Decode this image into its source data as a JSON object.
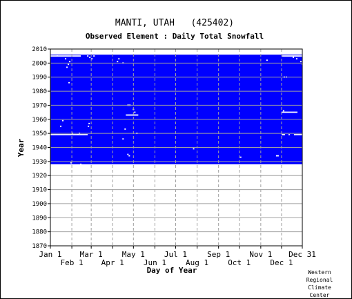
{
  "chart_data": {
    "type": "heatmap",
    "title": "MANTI, UTAH   (425402)",
    "subtitle": "Observed Element : Daily Total Snowfall",
    "xlabel": "Day of Year",
    "ylabel": "Year",
    "xlim": [
      1,
      365
    ],
    "ylim": [
      1870,
      2010
    ],
    "y_ticks": [
      1870,
      1880,
      1890,
      1900,
      1910,
      1920,
      1930,
      1940,
      1950,
      1960,
      1970,
      1980,
      1990,
      2000,
      2010
    ],
    "x_ticks_top_row": [
      {
        "label": "Jan 1",
        "day": 1
      },
      {
        "label": "Mar 1",
        "day": 60
      },
      {
        "label": "May 1",
        "day": 121
      },
      {
        "label": "Jul 1",
        "day": 182
      },
      {
        "label": "Sep 1",
        "day": 244
      },
      {
        "label": "Nov 1",
        "day": 305
      },
      {
        "label": "Dec 31",
        "day": 365
      }
    ],
    "x_ticks_bottom_row": [
      {
        "label": "Feb 1",
        "day": 32
      },
      {
        "label": "Apr 1",
        "day": 91
      },
      {
        "label": "Jun 1",
        "day": 152
      },
      {
        "label": "Aug 1",
        "day": 213
      },
      {
        "label": "Oct 1",
        "day": 274
      },
      {
        "label": "Dec 1",
        "day": 335
      }
    ],
    "grid": true,
    "colors": {
      "data_present": "#0000ff",
      "missing": "#ffffff",
      "grid": "#a0a0a0"
    },
    "data_present_years": [
      1928,
      2005
    ],
    "missing_segments": [
      {
        "year": 1949,
        "day_start": 1,
        "day_end": 55
      },
      {
        "year": 1963,
        "day_start": 110,
        "day_end": 128
      },
      {
        "year": 1965,
        "day_start": 335,
        "day_end": 358
      },
      {
        "year": 1949,
        "day_start": 335,
        "day_end": 340
      },
      {
        "year": 1949,
        "day_start": 353,
        "day_end": 365
      },
      {
        "year": 2005,
        "day_start": 1,
        "day_end": 45
      },
      {
        "year": 2005,
        "day_start": 336,
        "day_end": 365
      },
      {
        "year": 1970,
        "day_start": 112,
        "day_end": 117
      }
    ],
    "missing_points": [
      [
        10,
        2005
      ],
      [
        22,
        2003
      ],
      [
        28,
        2001
      ],
      [
        26,
        1999
      ],
      [
        24,
        1997
      ],
      [
        27,
        1986
      ],
      [
        15,
        1955
      ],
      [
        18,
        1959
      ],
      [
        32,
        1950
      ],
      [
        40,
        1949
      ],
      [
        42,
        1950
      ],
      [
        60,
        2003
      ],
      [
        63,
        2005
      ],
      [
        54,
        2005
      ],
      [
        57,
        2004
      ],
      [
        55,
        1955
      ],
      [
        56,
        1957
      ],
      [
        30,
        1929
      ],
      [
        44,
        1928
      ],
      [
        97,
        2001
      ],
      [
        99,
        2003
      ],
      [
        105,
        2000
      ],
      [
        120,
        1967
      ],
      [
        125,
        1950
      ],
      [
        122,
        1965
      ],
      [
        112,
        1935
      ],
      [
        114,
        1934
      ],
      [
        105,
        1946
      ],
      [
        108,
        1953
      ],
      [
        207,
        1939
      ],
      [
        275,
        1933
      ],
      [
        313,
        2002
      ],
      [
        327,
        1934
      ],
      [
        329,
        1934
      ],
      [
        338,
        1990
      ],
      [
        341,
        1990
      ],
      [
        345,
        1949
      ],
      [
        351,
        2004
      ],
      [
        356,
        2003
      ],
      [
        362,
        2001
      ],
      [
        364,
        1999
      ],
      [
        337,
        1966
      ]
    ]
  },
  "credit": {
    "line1": "Western",
    "line2": "Regional",
    "line3": "Climate",
    "line4": "Center"
  }
}
